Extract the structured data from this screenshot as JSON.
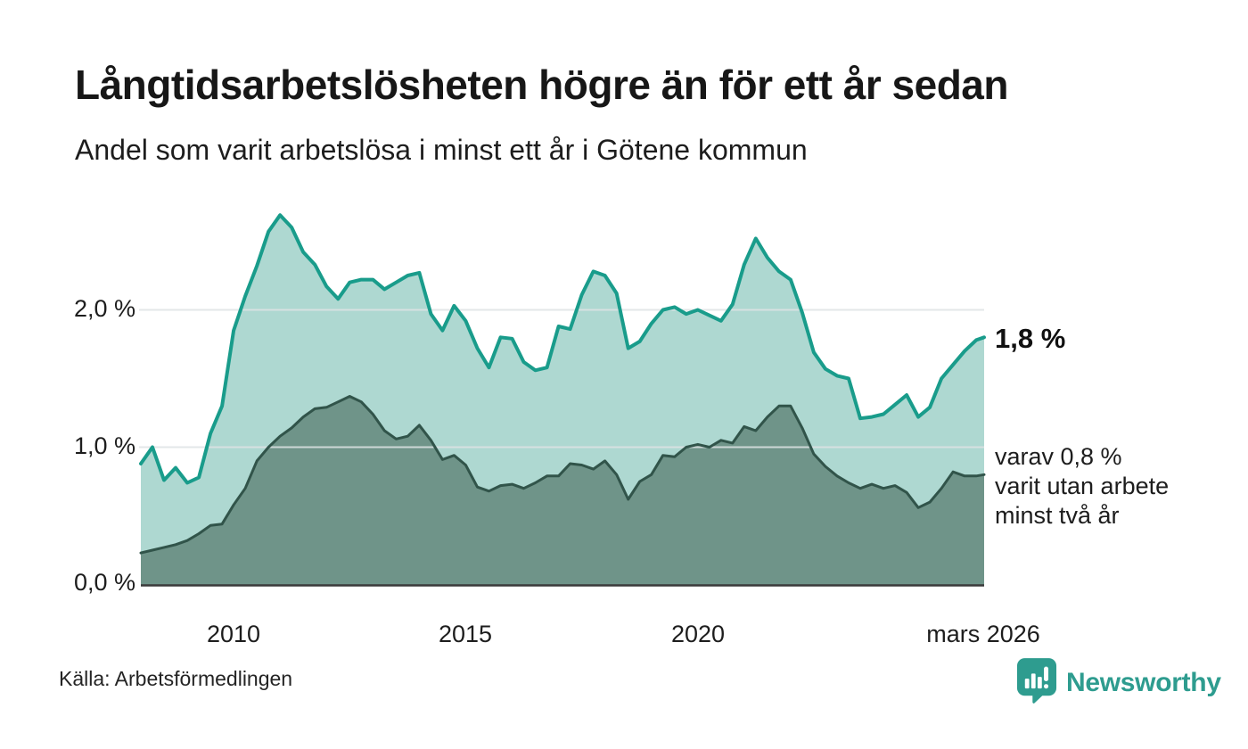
{
  "title": "Långtidsarbetslösheten högre än för ett år sedan",
  "subtitle": "Andel som varit arbetslösa i minst ett år i Götene kommun",
  "source": "Källa: Arbetsförmedlingen",
  "logo": {
    "text": "Newsworthy",
    "color": "#2E9C8F",
    "icon": "speech-bubble-bar-chart-exclamation"
  },
  "annotations": {
    "latest": "1,8 %",
    "secondary_lines": [
      "varav 0,8 %",
      "varit utan arbete",
      "minst två år"
    ]
  },
  "y_axis": {
    "ticks": [
      {
        "label": "2,0 %",
        "value": 2.0
      },
      {
        "label": "1,0 %",
        "value": 1.0
      },
      {
        "label": "0,0 %",
        "value": 0.0
      }
    ]
  },
  "x_axis": {
    "ticks": [
      {
        "label": "2010",
        "t": 2010
      },
      {
        "label": "2015",
        "t": 2015
      },
      {
        "label": "2020",
        "t": 2020
      },
      {
        "label": "mars 2026",
        "t": 2026.05
      }
    ]
  },
  "chart_data": {
    "type": "area",
    "title": "Långtidsarbetslösheten högre än för ett år sedan",
    "subtitle": "Andel som varit arbetslösa i minst ett år i Götene kommun",
    "unit": "%",
    "grid": true,
    "xlim": [
      2008,
      2026.17
    ],
    "ylim": [
      0,
      2.8
    ],
    "grid_color": "#dfe3e4",
    "baseline_color": "#3a3a3a",
    "x": [
      2008,
      2008.25,
      2008.5,
      2008.75,
      2009,
      2009.25,
      2009.5,
      2009.75,
      2010,
      2010.25,
      2010.5,
      2010.75,
      2011,
      2011.25,
      2011.5,
      2011.75,
      2012,
      2012.25,
      2012.5,
      2012.75,
      2013,
      2013.25,
      2013.5,
      2013.75,
      2014,
      2014.25,
      2014.5,
      2014.75,
      2015,
      2015.25,
      2015.5,
      2015.75,
      2016,
      2016.25,
      2016.5,
      2016.75,
      2017,
      2017.25,
      2017.5,
      2017.75,
      2018,
      2018.25,
      2018.5,
      2018.75,
      2019,
      2019.25,
      2019.5,
      2019.75,
      2020,
      2020.25,
      2020.5,
      2020.75,
      2021,
      2021.25,
      2021.5,
      2021.75,
      2022,
      2022.25,
      2022.5,
      2022.75,
      2023,
      2023.25,
      2023.5,
      2023.75,
      2024,
      2024.25,
      2024.5,
      2024.75,
      2025,
      2025.25,
      2025.5,
      2025.75,
      2026,
      2026.17
    ],
    "series": [
      {
        "name": "Andel som varit arbetslösa i minst ett år",
        "end_label": "1,8 %",
        "stroke": "#199C8B",
        "fill": "#AED8D1",
        "values": [
          0.88,
          1.0,
          0.76,
          0.85,
          0.74,
          0.78,
          1.1,
          1.3,
          1.85,
          2.1,
          2.32,
          2.57,
          2.69,
          2.6,
          2.42,
          2.33,
          2.17,
          2.08,
          2.2,
          2.22,
          2.22,
          2.15,
          2.2,
          2.25,
          2.27,
          1.97,
          1.85,
          2.03,
          1.92,
          1.72,
          1.58,
          1.8,
          1.79,
          1.62,
          1.56,
          1.58,
          1.88,
          1.86,
          2.11,
          2.28,
          2.25,
          2.12,
          1.72,
          1.77,
          1.9,
          2.0,
          2.02,
          1.97,
          2.0,
          1.96,
          1.92,
          2.04,
          2.33,
          2.52,
          2.38,
          2.28,
          2.22,
          1.98,
          1.69,
          1.57,
          1.52,
          1.5,
          1.21,
          1.22,
          1.24,
          1.31,
          1.38,
          1.22,
          1.29,
          1.5,
          1.6,
          1.7,
          1.78,
          1.8
        ]
      },
      {
        "name": "varav utan arbete minst två år",
        "end_label": "varav 0,8 % varit utan arbete minst två år",
        "stroke": "#31544A",
        "fill": "#6F9489",
        "values": [
          0.23,
          0.25,
          0.27,
          0.29,
          0.32,
          0.37,
          0.43,
          0.44,
          0.58,
          0.7,
          0.9,
          1.0,
          1.08,
          1.14,
          1.22,
          1.28,
          1.29,
          1.33,
          1.37,
          1.33,
          1.24,
          1.12,
          1.06,
          1.08,
          1.16,
          1.05,
          0.91,
          0.94,
          0.87,
          0.71,
          0.68,
          0.72,
          0.73,
          0.7,
          0.74,
          0.79,
          0.79,
          0.88,
          0.87,
          0.84,
          0.9,
          0.8,
          0.62,
          0.75,
          0.8,
          0.94,
          0.93,
          1.0,
          1.02,
          1.0,
          1.05,
          1.03,
          1.15,
          1.12,
          1.22,
          1.3,
          1.3,
          1.14,
          0.95,
          0.86,
          0.79,
          0.74,
          0.7,
          0.73,
          0.7,
          0.72,
          0.67,
          0.56,
          0.6,
          0.7,
          0.82,
          0.79,
          0.79,
          0.8
        ]
      }
    ]
  }
}
